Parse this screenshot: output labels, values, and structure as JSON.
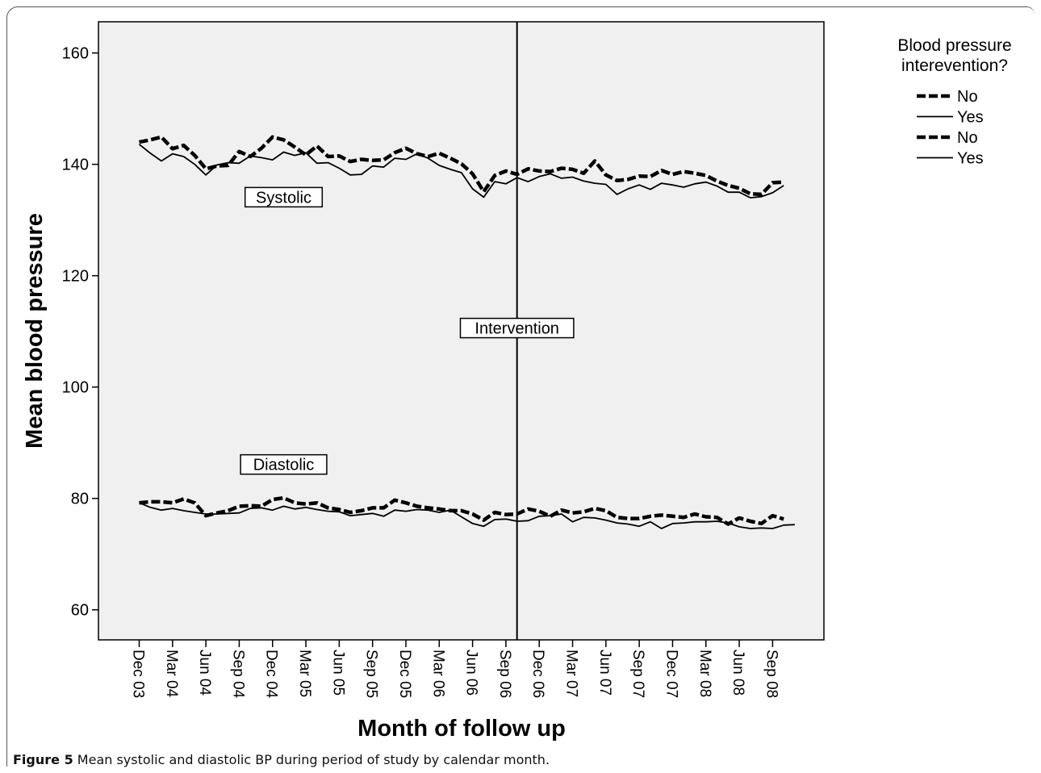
{
  "chart_data": {
    "type": "line",
    "title": "",
    "xlabel": "Month of follow up",
    "ylabel": "Mean blood pressure",
    "ylim": [
      54.6,
      165.6
    ],
    "yticks": [
      60,
      80,
      100,
      120,
      140,
      160
    ],
    "grid": false,
    "background": "#f0f0f0",
    "x_tick_labels": [
      "Dec 03",
      "Mar 04",
      "Jun 04",
      "Sep 04",
      "Dec 04",
      "Mar 05",
      "Jun 05",
      "Sep 05",
      "Dec 05",
      "Mar 06",
      "Jun 06",
      "Sep 06",
      "Dec 06",
      "Mar 07",
      "Jun 07",
      "Sep 07",
      "Dec 07",
      "Mar 08",
      "Jun 08",
      "Sep 08"
    ],
    "x_months": [
      "Dec 03",
      "Jan 04",
      "Feb 04",
      "Mar 04",
      "Apr 04",
      "May 04",
      "Jun 04",
      "Jul 04",
      "Aug 04",
      "Sep 04",
      "Oct 04",
      "Nov 04",
      "Dec 04",
      "Jan 05",
      "Feb 05",
      "Mar 05",
      "Apr 05",
      "May 05",
      "Jun 05",
      "Jul 05",
      "Aug 05",
      "Sep 05",
      "Oct 05",
      "Nov 05",
      "Dec 05",
      "Jan 06",
      "Feb 06",
      "Mar 06",
      "Apr 06",
      "May 06",
      "Jun 06",
      "Jul 06",
      "Aug 06",
      "Sep 06",
      "Oct 06",
      "Nov 06",
      "Dec 06",
      "Jan 07",
      "Feb 07",
      "Mar 07",
      "Apr 07",
      "May 07",
      "Jun 07",
      "Jul 07",
      "Aug 07",
      "Sep 07",
      "Oct 07",
      "Nov 07",
      "Dec 07",
      "Jan 08",
      "Feb 08",
      "Mar 08",
      "Apr 08",
      "May 08",
      "Jun 08",
      "Jul 08",
      "Aug 08",
      "Sep 08",
      "Oct 08",
      "Nov 08"
    ],
    "legend": {
      "title": "Blood pressure interevention?",
      "position": "top-right",
      "entries": [
        {
          "label": "No",
          "style": "dashed"
        },
        {
          "label": "Yes",
          "style": "solid"
        },
        {
          "label": "No",
          "style": "dashed"
        },
        {
          "label": "Yes",
          "style": "solid"
        }
      ]
    },
    "series": [
      {
        "name": "No",
        "group": "Systolic",
        "style": "dashed",
        "values": [
          144.0,
          144.4,
          144.9,
          142.8,
          143.4,
          141.6,
          139.2,
          139.7,
          139.8,
          142.3,
          141.4,
          142.9,
          144.9,
          144.4,
          143.1,
          141.7,
          143.3,
          141.4,
          141.5,
          140.5,
          140.9,
          140.7,
          140.8,
          142.1,
          142.9,
          141.9,
          141.4,
          142.0,
          141.1,
          140.1,
          138.3,
          135.1,
          138.0,
          138.8,
          138.2,
          139.2,
          138.8,
          138.7,
          139.3,
          139.1,
          138.4,
          140.6,
          138.1,
          137.1,
          137.3,
          137.9,
          137.8,
          138.9,
          138.2,
          138.7,
          138.4,
          138.0,
          137.0,
          136.2,
          135.7,
          134.7,
          134.6,
          136.7,
          136.8,
          null
        ]
      },
      {
        "name": "Yes",
        "group": "Systolic",
        "style": "solid",
        "values": [
          143.6,
          142.0,
          140.6,
          141.9,
          141.4,
          140.0,
          138.1,
          139.9,
          140.3,
          140.2,
          141.5,
          141.2,
          140.8,
          142.2,
          141.6,
          142.1,
          140.2,
          140.3,
          139.3,
          138.1,
          138.2,
          139.7,
          139.5,
          141.1,
          140.9,
          141.9,
          141.1,
          139.8,
          139.1,
          138.5,
          135.6,
          134.1,
          136.9,
          136.5,
          137.6,
          136.9,
          137.8,
          138.3,
          137.5,
          137.7,
          137.0,
          136.6,
          136.4,
          134.6,
          135.6,
          136.3,
          135.5,
          136.6,
          136.3,
          135.9,
          136.5,
          136.8,
          136.1,
          135.0,
          135.0,
          134.0,
          134.2,
          134.9,
          136.2,
          null
        ]
      },
      {
        "name": "No",
        "group": "Diastolic",
        "style": "dashed",
        "values": [
          79.2,
          79.4,
          79.4,
          79.2,
          79.9,
          79.2,
          76.9,
          77.4,
          77.8,
          78.6,
          78.7,
          78.6,
          79.8,
          80.1,
          79.2,
          79.0,
          79.2,
          78.3,
          78.0,
          77.5,
          77.8,
          78.3,
          78.3,
          79.7,
          79.2,
          78.6,
          78.3,
          78.1,
          77.8,
          77.8,
          77.2,
          76.1,
          77.5,
          77.1,
          77.2,
          78.1,
          77.7,
          76.8,
          77.9,
          77.4,
          77.6,
          78.2,
          77.8,
          76.6,
          76.4,
          76.4,
          76.8,
          77.0,
          76.8,
          76.6,
          77.2,
          76.7,
          76.6,
          75.4,
          76.5,
          75.9,
          75.5,
          76.9,
          76.3,
          null
        ]
      },
      {
        "name": "Yes",
        "group": "Diastolic",
        "style": "solid",
        "values": [
          79.2,
          78.4,
          77.9,
          78.2,
          77.8,
          77.5,
          77.2,
          77.2,
          77.3,
          77.4,
          78.2,
          78.3,
          77.9,
          78.6,
          78.1,
          78.4,
          78.0,
          77.7,
          77.6,
          76.9,
          77.1,
          77.3,
          76.8,
          77.9,
          77.7,
          78.0,
          77.9,
          77.5,
          77.9,
          76.7,
          75.5,
          75.0,
          76.2,
          76.3,
          75.9,
          76.0,
          76.8,
          76.9,
          77.2,
          75.8,
          76.6,
          76.5,
          76.1,
          75.6,
          75.4,
          75.0,
          75.8,
          74.6,
          75.5,
          75.6,
          75.8,
          75.8,
          75.9,
          75.6,
          74.9,
          74.6,
          74.7,
          74.6,
          75.2,
          75.3
        ]
      }
    ],
    "annotations": [
      {
        "text": "Systolic",
        "x": "Jan 05",
        "y": 134.1
      },
      {
        "text": "Diastolic",
        "x": "Jan 05",
        "y": 86.1
      },
      {
        "text": "Intervention",
        "x": "Oct 06",
        "y": 110.6
      }
    ],
    "reference_lines": [
      {
        "axis": "x",
        "value": "Oct 06"
      }
    ]
  },
  "caption": {
    "label": "Figure 5",
    "text": " Mean systolic and diastolic BP during period of study by calendar month."
  }
}
